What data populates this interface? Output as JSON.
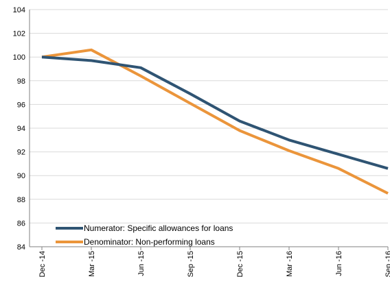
{
  "chart_data": {
    "type": "line",
    "title": "",
    "xlabel": "",
    "ylabel": "",
    "categories": [
      "Dec -14",
      "Mar -15",
      "Jun -15",
      "Sep -15",
      "Dec -15",
      "Mar -16",
      "Jun -16",
      "Sep -16"
    ],
    "ylim": [
      84,
      104
    ],
    "yticks": [
      84,
      86,
      88,
      90,
      92,
      94,
      96,
      98,
      100,
      102,
      104
    ],
    "grid": true,
    "legend_position": "bottom-left",
    "series": [
      {
        "name": "Numerator: Specific allowances for loans",
        "color": "#2f5473",
        "values": [
          100.0,
          99.7,
          99.1,
          96.9,
          94.6,
          93.0,
          91.8,
          90.6
        ]
      },
      {
        "name": "Denominator: Non-performing loans",
        "color": "#eb953b",
        "values": [
          100.0,
          100.6,
          98.4,
          96.1,
          93.8,
          92.1,
          90.6,
          88.5
        ]
      }
    ]
  }
}
